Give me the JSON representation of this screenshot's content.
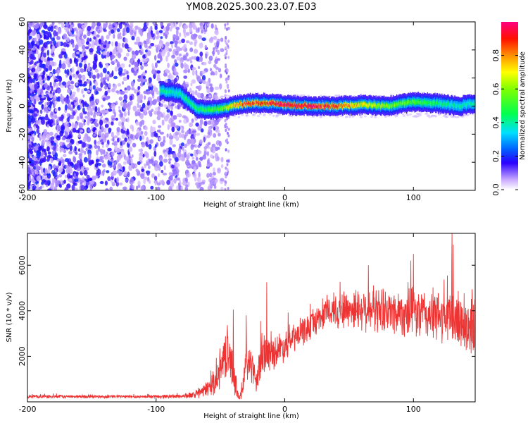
{
  "chart_data": [
    {
      "type": "heatmap",
      "title": "YM08.2025.300.23.07.E03",
      "xlabel": "Height of straight line (km)",
      "ylabel": "Frequency (Hz)",
      "xlim": [
        -200,
        148
      ],
      "ylim": [
        -60,
        60
      ],
      "xticks": [
        -200,
        -100,
        0,
        100
      ],
      "yticks": [
        60,
        40,
        20,
        0,
        -20,
        -40,
        -60
      ],
      "noise_region_x": [
        -200,
        -65
      ],
      "isolated_noise_column_x": -45,
      "ridge": {
        "description": "narrow band of high normalized amplitude around 0 Hz",
        "points": [
          {
            "x": -97,
            "y": 11,
            "amp": 0.45
          },
          {
            "x": -90,
            "y": 10,
            "amp": 0.4
          },
          {
            "x": -82,
            "y": 9,
            "amp": 0.4
          },
          {
            "x": -75,
            "y": 4,
            "amp": 0.45
          },
          {
            "x": -68,
            "y": -2,
            "amp": 0.45
          },
          {
            "x": -60,
            "y": -3,
            "amp": 0.5
          },
          {
            "x": -50,
            "y": -2,
            "amp": 0.55
          },
          {
            "x": -40,
            "y": 0,
            "amp": 0.75
          },
          {
            "x": -30,
            "y": 2,
            "amp": 0.85
          },
          {
            "x": -15,
            "y": 2,
            "amp": 0.9
          },
          {
            "x": 0,
            "y": 1,
            "amp": 0.95
          },
          {
            "x": 20,
            "y": 0,
            "amp": 0.95
          },
          {
            "x": 40,
            "y": 0,
            "amp": 0.85
          },
          {
            "x": 60,
            "y": 1,
            "amp": 0.7
          },
          {
            "x": 80,
            "y": 0,
            "amp": 0.6
          },
          {
            "x": 100,
            "y": 3,
            "amp": 0.55
          },
          {
            "x": 120,
            "y": 2,
            "amp": 0.45
          },
          {
            "x": 135,
            "y": 0,
            "amp": 0.4
          },
          {
            "x": 148,
            "y": 2,
            "amp": 0.4
          }
        ]
      },
      "colorbar": {
        "label": "Normalized spectral amplitude",
        "range": [
          0,
          1
        ],
        "ticks": [
          "0.0",
          "0.2",
          "0.4",
          "0.6",
          "0.8"
        ]
      }
    },
    {
      "type": "line",
      "title": "",
      "xlabel": "Height of straight line (km)",
      "ylabel": "SNR (10 * v/v)",
      "xlim": [
        -200,
        148
      ],
      "ylim": [
        0,
        7400
      ],
      "xticks": [
        -200,
        -100,
        0,
        100
      ],
      "yticks": [
        2000,
        4000,
        6000
      ],
      "series": [
        {
          "name": "SNR",
          "color": "#ee3333",
          "envelope": {
            "x": [
              -200,
              -150,
              -100,
              -80,
              -70,
              -62,
              -55,
              -50,
              -45,
              -40,
              -36,
              -33,
              -30,
              -26,
              -22,
              -18,
              -12,
              -5,
              0,
              10,
              20,
              30,
              40,
              60,
              80,
              100,
              120,
              135,
              148
            ],
            "mid": [
              230,
              230,
              230,
              250,
              300,
              500,
              850,
              1400,
              2300,
              1300,
              200,
              400,
              1800,
              1700,
              700,
              2200,
              2100,
              2300,
              2500,
              2900,
              3350,
              3850,
              4050,
              4100,
              4000,
              3900,
              3750,
              3600,
              3300
            ],
            "amp": [
              70,
              70,
              70,
              100,
              150,
              300,
              500,
              800,
              1100,
              800,
              200,
              400,
              1000,
              800,
              400,
              1100,
              700,
              700,
              650,
              600,
              600,
              600,
              800,
              900,
              950,
              1050,
              1100,
              1300,
              1400
            ]
          },
          "peaks": [
            {
              "x": -40,
              "y": 4050
            },
            {
              "x": -30,
              "y": 3800
            },
            {
              "x": -14,
              "y": 5250
            },
            {
              "x": 65,
              "y": 6000
            },
            {
              "x": 98,
              "y": 6200
            },
            {
              "x": 100,
              "y": 6500
            },
            {
              "x": 130,
              "y": 7400
            },
            {
              "x": 131,
              "y": 6900
            }
          ]
        }
      ]
    }
  ]
}
